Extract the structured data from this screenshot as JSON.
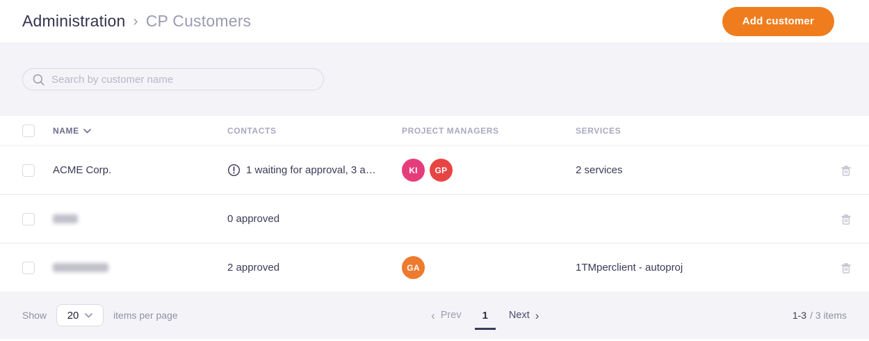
{
  "header": {
    "breadcrumb": {
      "parent": "Administration",
      "separator": "›",
      "current": "CP Customers"
    },
    "add_button_label": "Add customer"
  },
  "search": {
    "placeholder": "Search by customer name"
  },
  "table": {
    "columns": [
      "NAME",
      "CONTACTS",
      "PROJECT MANAGERS",
      "SERVICES"
    ],
    "rows": [
      {
        "name": "ACME Corp.",
        "name_redacted": false,
        "redacted_width": 0,
        "contacts": "1 waiting for approval, 3 a…",
        "contacts_warning": true,
        "managers": [
          {
            "initials": "KI",
            "color": "#e73c7c"
          },
          {
            "initials": "GP",
            "color": "#e94444"
          }
        ],
        "services": "2 services"
      },
      {
        "name": "",
        "name_redacted": true,
        "redacted_width": 36,
        "contacts": "0 approved",
        "contacts_warning": false,
        "managers": [],
        "services": ""
      },
      {
        "name": "",
        "name_redacted": true,
        "redacted_width": 80,
        "contacts": "2 approved",
        "contacts_warning": false,
        "managers": [
          {
            "initials": "GA",
            "color": "#ee7a2e"
          }
        ],
        "services": "1TMperclient - autoproj"
      }
    ]
  },
  "footer": {
    "show_label": "Show",
    "page_size": "20",
    "items_per_page_label": "items per page",
    "prev_label": "Prev",
    "prev_chevron": "‹",
    "current_page": "1",
    "next_label": "Next",
    "next_chevron": "›",
    "range": "1-3",
    "total": "/ 3 items"
  },
  "colors": {
    "accent_orange": "#ef7d1e",
    "avatar_pink": "#e73c7c",
    "avatar_red": "#e94444",
    "avatar_orange": "#ee7a2e",
    "band_background": "#f4f4f8",
    "text_dark": "#3a3a58",
    "text_muted": "#9a9ab2"
  }
}
